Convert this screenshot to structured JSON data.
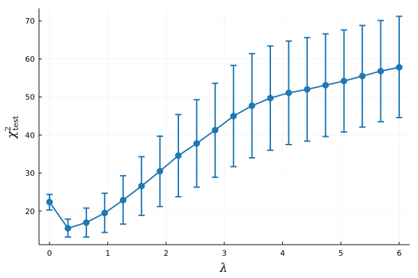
{
  "chart_data": {
    "type": "line",
    "xlabel": "λ",
    "ylabel": {
      "symbol": "χ",
      "subscript": "test",
      "superscript": "2"
    },
    "xlim": [
      -0.18,
      6.18
    ],
    "ylim": [
      11.2,
      73.3
    ],
    "x_ticks": [
      0,
      1,
      2,
      3,
      4,
      5,
      6
    ],
    "y_ticks": [
      20,
      30,
      40,
      50,
      60,
      70
    ],
    "grid": true,
    "legend": "none",
    "series": [
      {
        "color": "#1f77b4",
        "marker": "circle",
        "x": [
          0,
          0.316,
          0.632,
          0.947,
          1.263,
          1.579,
          1.895,
          2.211,
          2.526,
          2.842,
          3.158,
          3.474,
          3.789,
          4.105,
          4.421,
          4.737,
          5.053,
          5.368,
          5.684,
          6.0
        ],
        "y": [
          22.4,
          15.5,
          17.0,
          19.5,
          22.9,
          26.6,
          30.5,
          34.6,
          37.8,
          41.3,
          45.0,
          47.7,
          49.7,
          51.1,
          52.0,
          53.1,
          54.2,
          55.5,
          56.8,
          57.8
        ],
        "y_lower": [
          20.3,
          13.2,
          13.2,
          14.4,
          16.6,
          18.9,
          21.2,
          23.8,
          26.3,
          28.9,
          31.7,
          34.0,
          36.0,
          37.5,
          38.4,
          39.6,
          40.8,
          42.1,
          43.5,
          44.6
        ],
        "y_upper": [
          24.4,
          17.9,
          20.8,
          24.7,
          29.3,
          34.3,
          39.7,
          45.4,
          49.3,
          53.6,
          58.3,
          61.4,
          63.4,
          64.7,
          65.6,
          66.6,
          67.6,
          68.8,
          70.1,
          71.2
        ]
      }
    ]
  }
}
